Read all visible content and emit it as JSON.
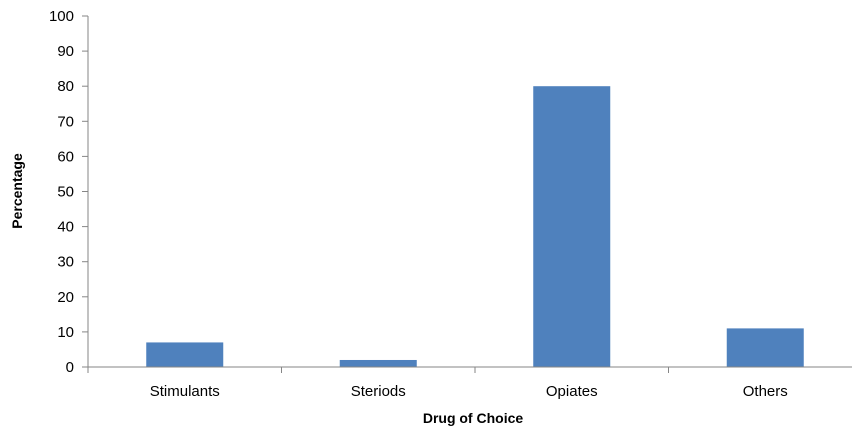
{
  "chart_data": {
    "type": "bar",
    "categories": [
      "Stimulants",
      "Steriods",
      "Opiates",
      "Others"
    ],
    "series": [
      {
        "values": [
          7,
          2,
          80,
          11
        ]
      }
    ],
    "title": "",
    "xlabel": "Drug of Choice",
    "ylabel": "Percentage",
    "ylim": [
      0,
      100
    ],
    "yticks": [
      "0",
      "10",
      "20",
      "30",
      "40",
      "50",
      "60",
      "70",
      "80",
      "90",
      "100"
    ],
    "grid": false,
    "legend": "none",
    "bar_color": "#4f81bd",
    "axis_color": "#868686"
  }
}
